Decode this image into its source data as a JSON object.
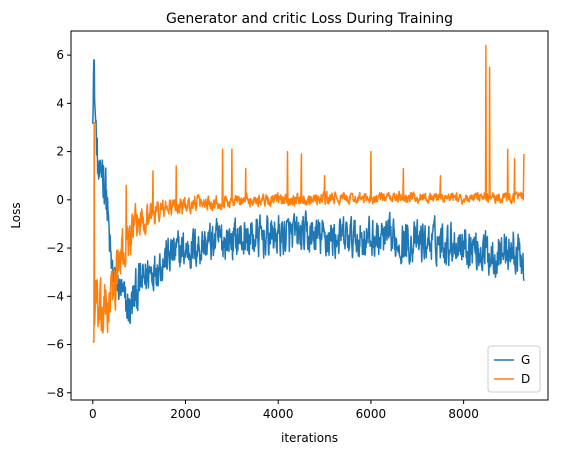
{
  "chart_data": {
    "type": "line",
    "title": "Generator and critic Loss During Training",
    "xlabel": "iterations",
    "ylabel": "Loss",
    "xlim": [
      -470,
      9820
    ],
    "ylim": [
      -8.3,
      7.0
    ],
    "x_ticks": [
      0,
      2000,
      4000,
      6000,
      8000
    ],
    "y_ticks": [
      -8,
      -6,
      -4,
      -2,
      0,
      2,
      4,
      6
    ],
    "grid": false,
    "legend_position": "lower-right",
    "colors": {
      "G": "#1f77b4",
      "D": "#ff7f0e"
    },
    "series": [
      {
        "name": "G",
        "color": "#1f77b4",
        "x": [
          0,
          20,
          40,
          60,
          80,
          100,
          130,
          160,
          200,
          250,
          300,
          350,
          400,
          500,
          600,
          700,
          800,
          900,
          1000,
          1200,
          1400,
          1600,
          1800,
          2000,
          2500,
          3000,
          3500,
          4000,
          4500,
          5000,
          5500,
          6000,
          6500,
          7000,
          7500,
          8000,
          8500,
          9000,
          9300
        ],
        "y": [
          3.5,
          6.0,
          4.5,
          3.2,
          2.4,
          1.5,
          1.0,
          0.6,
          1.5,
          1.0,
          0.0,
          -1.5,
          -2.8,
          -3.5,
          -3.7,
          -4.3,
          -4.6,
          -4.0,
          -3.6,
          -3.0,
          -2.7,
          -2.4,
          -2.2,
          -2.1,
          -1.8,
          -1.6,
          -1.6,
          -1.5,
          -1.5,
          -1.6,
          -1.6,
          -1.6,
          -1.7,
          -1.8,
          -1.7,
          -1.8,
          -2.2,
          -2.1,
          -2.5
        ],
        "band": [
          0.5,
          1.0,
          1.2,
          1.2,
          1.2,
          1.2,
          1.2,
          1.0,
          1.5,
          1.5,
          1.5,
          1.2,
          1.0,
          0.8,
          0.8,
          1.0,
          1.1,
          1.1,
          1.1,
          1.0,
          1.0,
          1.0,
          1.0,
          1.0,
          1.0,
          1.0,
          1.0,
          1.0,
          1.0,
          1.0,
          1.0,
          1.0,
          1.0,
          1.0,
          1.0,
          1.0,
          1.1,
          1.1,
          1.0
        ]
      },
      {
        "name": "D",
        "color": "#ff7f0e",
        "x": [
          0,
          20,
          40,
          60,
          80,
          100,
          150,
          200,
          300,
          400,
          500,
          600,
          800,
          1000,
          1200,
          1500,
          2000,
          2500,
          3000,
          3500,
          4000,
          4500,
          5000,
          5500,
          6000,
          6500,
          7000,
          7500,
          8000,
          8500,
          9000,
          9300
        ],
        "y": [
          -5.5,
          -6.0,
          -4.5,
          -3.8,
          -4.5,
          -4.8,
          -5.0,
          -4.8,
          -4.5,
          -4.0,
          -3.2,
          -2.5,
          -1.5,
          -0.9,
          -0.6,
          -0.4,
          -0.2,
          -0.1,
          -0.05,
          0.0,
          0.0,
          0.05,
          0.05,
          0.05,
          0.05,
          0.1,
          0.1,
          0.1,
          0.05,
          0.1,
          0.1,
          0.1
        ],
        "band": [
          1.5,
          1.5,
          1.5,
          1.5,
          1.5,
          1.5,
          1.5,
          1.5,
          1.4,
          1.3,
          1.3,
          1.2,
          1.0,
          0.8,
          0.7,
          0.5,
          0.4,
          0.35,
          0.3,
          0.3,
          0.3,
          0.3,
          0.3,
          0.25,
          0.25,
          0.25,
          0.25,
          0.25,
          0.25,
          0.25,
          0.25,
          0.25
        ],
        "spikes": [
          [
            30,
            3.2
          ],
          [
            720,
            0.6
          ],
          [
            1300,
            1.2
          ],
          [
            1800,
            1.4
          ],
          [
            2800,
            2.1
          ],
          [
            3000,
            2.1
          ],
          [
            3300,
            1.3
          ],
          [
            4200,
            2.0
          ],
          [
            4500,
            1.9
          ],
          [
            5000,
            1.0
          ],
          [
            6000,
            2.0
          ],
          [
            6700,
            1.3
          ],
          [
            7500,
            1.0
          ],
          [
            8480,
            6.4
          ],
          [
            8560,
            5.5
          ],
          [
            8950,
            2.1
          ],
          [
            9100,
            1.7
          ],
          [
            9300,
            1.9
          ]
        ]
      }
    ]
  }
}
